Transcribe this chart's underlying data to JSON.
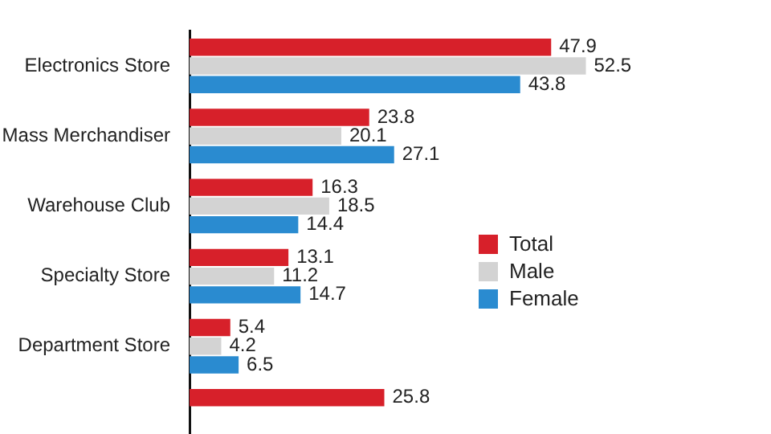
{
  "chart_data": {
    "type": "bar",
    "orientation": "horizontal",
    "categories": [
      "Electronics Store",
      "Mass Merchandiser",
      "Warehouse Club",
      "Specialty Store",
      "Department Store",
      null
    ],
    "series": [
      {
        "name": "Total",
        "color": "#d7202a",
        "values": [
          47.9,
          23.8,
          16.3,
          13.1,
          5.4,
          25.8
        ]
      },
      {
        "name": "Male",
        "color": "#d3d3d3",
        "values": [
          52.5,
          20.1,
          18.5,
          11.2,
          4.2,
          null
        ]
      },
      {
        "name": "Female",
        "color": "#2a8bd0",
        "values": [
          43.8,
          27.1,
          14.4,
          14.7,
          6.5,
          null
        ]
      }
    ],
    "data_labels": true,
    "legend": "right",
    "grid": false
  }
}
